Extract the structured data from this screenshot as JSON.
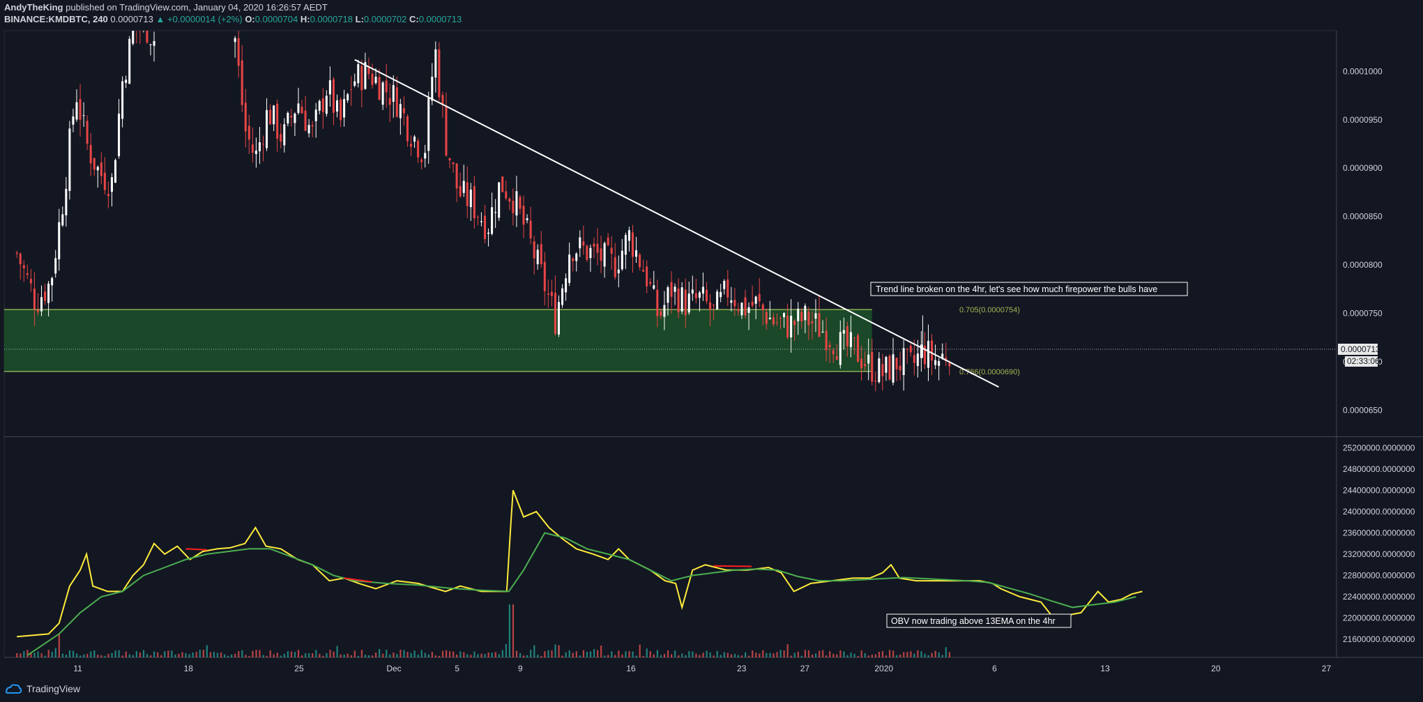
{
  "header": {
    "author": "AndyTheKing",
    "published": "published on TradingView.com, January 04, 2020 16:26:57 AEDT",
    "symbol": "BINANCE:KMDBTC, 240",
    "last": "0.0000713",
    "change": "▲ +0.0000014 (+2%)",
    "o_label": "O:",
    "o_value": "0.0000704",
    "h_label": "H:",
    "h_value": "0.0000718",
    "l_label": "L:",
    "l_value": "0.0000702",
    "c_label": "C:",
    "c_value": "0.0000713"
  },
  "footer": {
    "brand": "TradingView"
  },
  "colors": {
    "background": "#131722",
    "up": "#ffffff",
    "down": "#e84545",
    "zone": "#1e5a2b",
    "obv": "#ffeb3b",
    "ema": "#4caf50",
    "volume_up": "#26a69a",
    "volume_down": "#ef5350",
    "grid": "#2a2e39"
  },
  "chart_data": [
    {
      "type": "candlestick",
      "title": "",
      "x_tick_labels": [
        "11",
        "18",
        "25",
        "Dec",
        "5",
        "9",
        "16",
        "23",
        "27",
        "2020",
        "6",
        "13",
        "20",
        "27"
      ],
      "y_tick_labels": [
        "0.0001000",
        "0.0000950",
        "0.0000900",
        "0.0000850",
        "0.0000800",
        "0.0000750",
        "0.0000700",
        "0.0000650"
      ],
      "ylim": [
        6.23e-05,
        0.0001042
      ],
      "x_days_range": [
        -0.6,
        62.5
      ],
      "current_price_label": "0.0000713",
      "countdown_label": "02:33:06",
      "grid": false,
      "close_path": [
        [
          0,
          8.12e-05
        ],
        [
          0.9,
          7.62e-05
        ],
        [
          1.6,
          7.82e-05
        ],
        [
          2.2,
          8.7e-05
        ],
        [
          2.8,
          9.8e-05
        ],
        [
          3.3,
          9.25e-05
        ],
        [
          3.9,
          8.95e-05
        ],
        [
          4.5,
          8.85e-05
        ],
        [
          5.0,
          9.9e-05
        ],
        [
          5.5,
          0.000104
        ],
        [
          6.0,
          0.000105
        ],
        [
          6.6,
          0.000103
        ],
        [
          10.3,
          0.000104
        ],
        [
          10.8,
          9.4e-05
        ],
        [
          11.3,
          9.1e-05
        ],
        [
          11.9,
          9.6e-05
        ],
        [
          12.6,
          9.3e-05
        ],
        [
          13.3,
          9.7e-05
        ],
        [
          14.0,
          9.35e-05
        ],
        [
          14.7,
          9.85e-05
        ],
        [
          15.3,
          9.45e-05
        ],
        [
          15.9,
          9.9e-05
        ],
        [
          16.6,
          0.0001
        ],
        [
          17.3,
          9.85e-05
        ],
        [
          18.0,
          9.7e-05
        ],
        [
          18.6,
          9.4e-05
        ],
        [
          19.3,
          9.15e-05
        ],
        [
          19.8,
          0.0001025
        ],
        [
          20.3,
          9.3e-05
        ],
        [
          20.9,
          8.75e-05
        ],
        [
          21.5,
          8.65e-05
        ],
        [
          22.3,
          8.4e-05
        ],
        [
          22.9,
          8.85e-05
        ],
        [
          23.5,
          8.7e-05
        ],
        [
          24.2,
          8.3e-05
        ],
        [
          24.9,
          7.85e-05
        ],
        [
          25.5,
          7.45e-05
        ],
        [
          26.2,
          8.2e-05
        ],
        [
          26.9,
          8.15e-05
        ],
        [
          27.5,
          8.1e-05
        ],
        [
          28.3,
          8e-05
        ],
        [
          29.0,
          8.3e-05
        ],
        [
          29.8,
          7.9e-05
        ],
        [
          30.4,
          7.45e-05
        ],
        [
          31.0,
          7.75e-05
        ],
        [
          31.7,
          7.6e-05
        ],
        [
          32.4,
          7.65e-05
        ],
        [
          33.0,
          7.5e-05
        ],
        [
          33.7,
          7.75e-05
        ],
        [
          34.4,
          7.55e-05
        ],
        [
          35.0,
          7.6e-05
        ],
        [
          35.8,
          7.42e-05
        ],
        [
          36.5,
          7.38e-05
        ],
        [
          37.4,
          7.45e-05
        ],
        [
          38.2,
          7.32e-05
        ],
        [
          38.9,
          7.18e-05
        ],
        [
          39.7,
          7.12e-05
        ],
        [
          40.4,
          6.95e-05
        ],
        [
          41.0,
          6.88e-05
        ],
        [
          41.7,
          7e-05
        ],
        [
          42.4,
          6.95e-05
        ],
        [
          42.9,
          7.12e-05
        ],
        [
          43.6,
          7e-05
        ],
        [
          44.2,
          7.13e-05
        ]
      ],
      "fib_zone": {
        "top": 7.54e-05,
        "bottom": 6.9e-05,
        "x_start": -0.6,
        "x_end": 40.5
      },
      "fib_labels": [
        "0.705(0.0000754)",
        "0.786(0.0000690)"
      ],
      "trend_line": {
        "from": [
          16.0,
          0.0001012
        ],
        "to": [
          46.5,
          6.74e-05
        ]
      },
      "annotation": "Trend line broken on the 4hr, let's see how much firepower the bulls have"
    },
    {
      "type": "line",
      "title": "",
      "y_tick_labels": [
        "25200000.0000000",
        "24800000.0000000",
        "24400000.0000000",
        "24000000.0000000",
        "23600000.0000000",
        "23200000.0000000",
        "22800000.0000000",
        "22400000.0000000",
        "22000000.0000000",
        "21600000.0000000"
      ],
      "ylim": [
        21260000,
        25400000
      ],
      "series": [
        {
          "key": "obv",
          "points": [
            [
              0,
              21650000
            ],
            [
              1.5,
              21700000
            ],
            [
              2.0,
              21900000
            ],
            [
              2.5,
              22600000
            ],
            [
              3.0,
              22900000
            ],
            [
              3.3,
              23200000
            ],
            [
              3.6,
              22600000
            ],
            [
              4.3,
              22500000
            ],
            [
              5.0,
              22500000
            ],
            [
              5.5,
              22800000
            ],
            [
              6.0,
              23000000
            ],
            [
              6.5,
              23400000
            ],
            [
              7.0,
              23200000
            ],
            [
              7.6,
              23350000
            ],
            [
              8.2,
              23100000
            ],
            [
              8.8,
              23250000
            ],
            [
              9.5,
              23300000
            ],
            [
              10.1,
              23320000
            ],
            [
              10.8,
              23400000
            ],
            [
              11.3,
              23700000
            ],
            [
              11.8,
              23350000
            ],
            [
              12.5,
              23300000
            ],
            [
              13.3,
              23100000
            ],
            [
              14.0,
              23000000
            ],
            [
              14.8,
              22700000
            ],
            [
              15.5,
              22750000
            ],
            [
              16.2,
              22650000
            ],
            [
              17.0,
              22550000
            ],
            [
              18.0,
              22700000
            ],
            [
              19.0,
              22650000
            ],
            [
              20.3,
              22500000
            ],
            [
              21.0,
              22600000
            ],
            [
              22.0,
              22500000
            ],
            [
              22.9,
              22500000
            ],
            [
              23.2,
              22500000
            ],
            [
              23.4,
              23800000
            ],
            [
              23.5,
              24400000
            ],
            [
              24.0,
              23900000
            ],
            [
              24.6,
              24000000
            ],
            [
              25.2,
              23700000
            ],
            [
              25.8,
              23500000
            ],
            [
              26.5,
              23300000
            ],
            [
              27.3,
              23200000
            ],
            [
              28.0,
              23100000
            ],
            [
              28.5,
              23300000
            ],
            [
              29.0,
              23100000
            ],
            [
              30.0,
              22900000
            ],
            [
              30.7,
              22700000
            ],
            [
              31.2,
              22650000
            ],
            [
              31.5,
              22200000
            ],
            [
              32.0,
              22900000
            ],
            [
              32.6,
              23000000
            ],
            [
              33.6,
              22900000
            ],
            [
              34.6,
              22900000
            ],
            [
              35.6,
              22950000
            ],
            [
              36.2,
              22850000
            ],
            [
              36.8,
              22500000
            ],
            [
              37.6,
              22650000
            ],
            [
              38.6,
              22700000
            ],
            [
              39.6,
              22750000
            ],
            [
              40.4,
              22750000
            ],
            [
              41.0,
              22850000
            ],
            [
              41.4,
              23000000
            ],
            [
              41.8,
              22750000
            ],
            [
              42.6,
              22700000
            ],
            [
              43.6,
              22700000
            ],
            [
              44.6,
              22700000
            ],
            [
              45.6,
              22700000
            ],
            [
              46.2,
              22650000
            ],
            [
              46.6,
              22550000
            ],
            [
              47.5,
              22400000
            ],
            [
              48.5,
              22300000
            ],
            [
              49.0,
              22050000
            ],
            [
              49.7,
              22050000
            ],
            [
              50.4,
              22100000
            ],
            [
              50.8,
              22300000
            ],
            [
              51.2,
              22500000
            ],
            [
              51.7,
              22300000
            ],
            [
              52.3,
              22350000
            ],
            [
              52.8,
              22450000
            ],
            [
              53.3,
              22500000
            ]
          ]
        },
        {
          "key": "ema",
          "points": [
            [
              0.5,
              21300000
            ],
            [
              2.0,
              21700000
            ],
            [
              3.0,
              22100000
            ],
            [
              4.0,
              22400000
            ],
            [
              5.0,
              22500000
            ],
            [
              6.0,
              22800000
            ],
            [
              7.0,
              22950000
            ],
            [
              8.0,
              23100000
            ],
            [
              9.0,
              23200000
            ],
            [
              10.0,
              23250000
            ],
            [
              11.0,
              23300000
            ],
            [
              12.0,
              23300000
            ],
            [
              13.0,
              23150000
            ],
            [
              14.0,
              23000000
            ],
            [
              15.0,
              22800000
            ],
            [
              16.0,
              22700000
            ],
            [
              17.5,
              22650000
            ],
            [
              19.0,
              22620000
            ],
            [
              20.5,
              22560000
            ],
            [
              22.0,
              22520000
            ],
            [
              23.3,
              22500000
            ],
            [
              24.0,
              22900000
            ],
            [
              25.0,
              23600000
            ],
            [
              26.0,
              23500000
            ],
            [
              27.0,
              23300000
            ],
            [
              28.0,
              23200000
            ],
            [
              29.0,
              23100000
            ],
            [
              30.0,
              22900000
            ],
            [
              31.0,
              22700000
            ],
            [
              32.0,
              22800000
            ],
            [
              33.0,
              22850000
            ],
            [
              34.0,
              22900000
            ],
            [
              35.0,
              22920000
            ],
            [
              36.0,
              22900000
            ],
            [
              37.0,
              22780000
            ],
            [
              38.0,
              22700000
            ],
            [
              39.0,
              22700000
            ],
            [
              40.0,
              22720000
            ],
            [
              41.0,
              22740000
            ],
            [
              42.0,
              22760000
            ],
            [
              43.0,
              22740000
            ],
            [
              44.0,
              22720000
            ],
            [
              45.0,
              22700000
            ],
            [
              46.0,
              22670000
            ],
            [
              47.0,
              22560000
            ],
            [
              48.0,
              22450000
            ],
            [
              49.0,
              22320000
            ],
            [
              50.0,
              22200000
            ],
            [
              51.0,
              22250000
            ],
            [
              52.0,
              22300000
            ],
            [
              53.0,
              22400000
            ]
          ]
        }
      ],
      "red_highlights": [
        [
          [
            8.0,
            23300000
          ],
          [
            9.0,
            23280000
          ]
        ],
        [
          [
            15.5,
            22750000
          ],
          [
            16.8,
            22680000
          ]
        ],
        [
          [
            33.0,
            22980000
          ],
          [
            34.8,
            22970000
          ]
        ]
      ],
      "annotation": "OBV now trading above 13EMA on the 4hr"
    }
  ]
}
